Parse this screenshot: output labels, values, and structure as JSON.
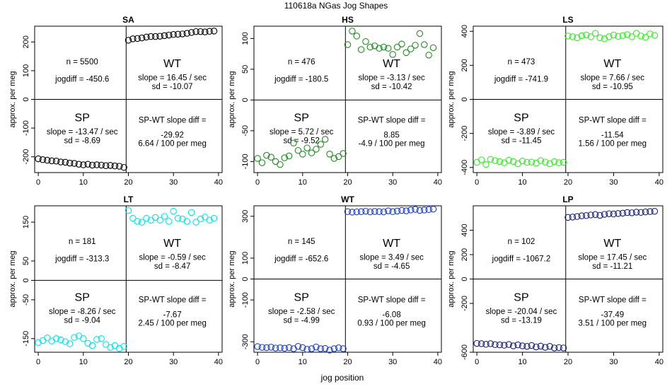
{
  "figure": {
    "title": "110618a    NGas Jog Shapes",
    "xlabel": "jog position",
    "ylabel": "approx. per meg"
  },
  "chart_data": [
    {
      "type": "scatter",
      "title": "SA",
      "color": "#000000",
      "xlim": [
        -0.8,
        40.8
      ],
      "ylim": [
        -255,
        255
      ],
      "xticks": [
        0,
        10,
        20,
        30,
        40
      ],
      "yticks": [
        -200,
        -100,
        0,
        100,
        200
      ],
      "sp": {
        "x": [
          0,
          1,
          2,
          3,
          4,
          5,
          6,
          7,
          8,
          9,
          10,
          11,
          12,
          13,
          14,
          15,
          16,
          17,
          18,
          19
        ],
        "y": [
          -207,
          -210,
          -212,
          -214,
          -215,
          -218,
          -219,
          -222,
          -223,
          -226,
          -228,
          -226,
          -229,
          -228,
          -229,
          -231,
          -230,
          -232,
          -233,
          -237
        ]
      },
      "wt": {
        "x": [
          20,
          21,
          22,
          23,
          24,
          25,
          26,
          27,
          28,
          29,
          30,
          31,
          32,
          33,
          34,
          35,
          36,
          37,
          38,
          39
        ],
        "y": [
          206,
          211,
          212,
          214,
          217,
          219,
          219,
          220,
          222,
          224,
          226,
          227,
          228,
          230,
          233,
          236,
          236,
          235,
          237,
          238
        ]
      },
      "n_text": "n = 5500",
      "jogdiff_text": "jogdiff = -450.6",
      "wt_label": "WT",
      "wt_slope": "slope = 16.45 / sec",
      "wt_sd": "sd = -10.07",
      "sp_label": "SP",
      "sp_slope": "slope = -13.47 / sec",
      "sp_sd": "sd = -8.69",
      "diff_label": "SP-WT slope diff =",
      "diff_value": "-29.92",
      "diff_per": "6.64 / 100 per meg"
    },
    {
      "type": "scatter",
      "title": "HS",
      "color": "#228B22",
      "xlim": [
        -0.8,
        40.8
      ],
      "ylim": [
        -118,
        120
      ],
      "xticks": [
        0,
        10,
        20,
        30,
        40
      ],
      "yticks": [
        -100,
        -50,
        0,
        50,
        100
      ],
      "sp": {
        "x": [
          0,
          1,
          2,
          3,
          4,
          5,
          6,
          7,
          8,
          9,
          10,
          11,
          12,
          13,
          14,
          15,
          16,
          17,
          18,
          19
        ],
        "y": [
          -95,
          -102,
          -90,
          -93,
          -100,
          -105,
          -94,
          -91,
          -70,
          -82,
          -88,
          -78,
          -86,
          -80,
          -72,
          -64,
          -88,
          -95,
          -92,
          -87
        ]
      },
      "wt": {
        "x": [
          20,
          21,
          22,
          23,
          24,
          25,
          26,
          27,
          28,
          29,
          30,
          31,
          32,
          33,
          34,
          35,
          36,
          37,
          38,
          39
        ],
        "y": [
          90,
          112,
          104,
          82,
          95,
          86,
          88,
          84,
          86,
          84,
          74,
          86,
          91,
          77,
          83,
          89,
          108,
          90,
          73,
          85
        ]
      },
      "n_text": "n = 476",
      "jogdiff_text": "jogdiff = -180.5",
      "wt_label": "WT",
      "wt_slope": "slope = -3.13 / sec",
      "wt_sd": "sd = -10.42",
      "sp_label": "SP",
      "sp_slope": "slope = 5.72 / sec",
      "sp_sd": "sd = -9.52",
      "diff_label": "SP-WT slope diff =",
      "diff_value": "8.85",
      "diff_per": "-4.9 / 100 per meg"
    },
    {
      "type": "scatter",
      "title": "LS",
      "color": "#33EE22",
      "xlim": [
        -0.8,
        40.8
      ],
      "ylim": [
        -430,
        430
      ],
      "xticks": [
        0,
        10,
        20,
        30,
        40
      ],
      "yticks": [
        -400,
        -200,
        0,
        200,
        400
      ],
      "sp": {
        "x": [
          0,
          1,
          2,
          3,
          4,
          5,
          6,
          7,
          8,
          9,
          10,
          11,
          12,
          13,
          14,
          15,
          16,
          17,
          18,
          19
        ],
        "y": [
          -370,
          -355,
          -382,
          -352,
          -360,
          -365,
          -372,
          -358,
          -365,
          -378,
          -362,
          -370,
          -368,
          -375,
          -360,
          -368,
          -378,
          -365,
          -372,
          -370
        ]
      },
      "wt": {
        "x": [
          20,
          21,
          22,
          23,
          24,
          25,
          26,
          27,
          28,
          29,
          30,
          31,
          32,
          33,
          34,
          35,
          36,
          37,
          38,
          39
        ],
        "y": [
          372,
          368,
          362,
          374,
          378,
          368,
          388,
          362,
          356,
          368,
          378,
          370,
          375,
          380,
          368,
          388,
          372,
          365,
          385,
          376
        ]
      },
      "n_text": "n = 473",
      "jogdiff_text": "jogdiff = -741.9",
      "wt_label": "WT",
      "wt_slope": "slope = 7.66 / sec",
      "wt_sd": "sd = -10.95",
      "sp_label": "SP",
      "sp_slope": "slope = -3.89 / sec",
      "sp_sd": "sd = -11.45",
      "diff_label": "SP-WT slope diff =",
      "diff_value": "-11.54",
      "diff_per": "1.56 / 100 per meg"
    },
    {
      "type": "scatter",
      "title": "LT",
      "color": "#00E5EE",
      "xlim": [
        -0.8,
        40.8
      ],
      "ylim": [
        -185,
        192
      ],
      "xticks": [
        0,
        10,
        20,
        30,
        40
      ],
      "yticks": [
        -150,
        -50,
        0,
        50,
        150
      ],
      "sp": {
        "x": [
          0,
          1,
          2,
          3,
          4,
          5,
          6,
          7,
          8,
          9,
          10,
          11,
          12,
          13,
          14,
          15,
          16,
          17,
          18,
          19
        ],
        "y": [
          -160,
          -155,
          -148,
          -156,
          -150,
          -153,
          -158,
          -163,
          -147,
          -143,
          -150,
          -162,
          -168,
          -152,
          -150,
          -165,
          -173,
          -168,
          -175,
          -170
        ]
      },
      "wt": {
        "x": [
          20,
          21,
          22,
          23,
          24,
          25,
          26,
          27,
          28,
          29,
          30,
          31,
          32,
          33,
          34,
          35,
          36,
          37,
          38,
          39
        ],
        "y": [
          180,
          160,
          152,
          150,
          160,
          155,
          162,
          155,
          165,
          152,
          178,
          160,
          158,
          152,
          175,
          150,
          158,
          163,
          155,
          160
        ]
      },
      "n_text": "n = 181",
      "jogdiff_text": "jogdiff = -313.3",
      "wt_label": "WT",
      "wt_slope": "slope = -0.59 / sec",
      "wt_sd": "sd = -8.47",
      "sp_label": "SP",
      "sp_slope": "slope = -8.26 / sec",
      "sp_sd": "sd = -9.04",
      "diff_label": "SP-WT slope diff =",
      "diff_value": "-7.67",
      "diff_per": "2.45 / 100 per meg"
    },
    {
      "type": "scatter",
      "title": "WT",
      "color": "#1E3FD0",
      "xlim": [
        -0.8,
        40.8
      ],
      "ylim": [
        -350,
        350
      ],
      "xticks": [
        0,
        10,
        20,
        30,
        40
      ],
      "yticks": [
        -300,
        -100,
        0,
        100,
        300
      ],
      "sp": {
        "x": [
          0,
          1,
          2,
          3,
          4,
          5,
          6,
          7,
          8,
          9,
          10,
          11,
          12,
          13,
          14,
          15,
          16,
          17,
          18,
          19
        ],
        "y": [
          -323,
          -327,
          -328,
          -326,
          -330,
          -329,
          -331,
          -328,
          -333,
          -322,
          -328,
          -336,
          -333,
          -325,
          -333,
          -332,
          -340,
          -333,
          -329,
          -333
        ]
      },
      "wt": {
        "x": [
          20,
          21,
          22,
          23,
          24,
          25,
          26,
          27,
          28,
          29,
          30,
          31,
          32,
          33,
          34,
          35,
          36,
          37,
          38,
          39
        ],
        "y": [
          322,
          320,
          321,
          322,
          324,
          321,
          323,
          322,
          321,
          326,
          322,
          325,
          328,
          326,
          330,
          333,
          328,
          330,
          332,
          334
        ]
      },
      "n_text": "n = 145",
      "jogdiff_text": "jogdiff = -652.6",
      "wt_label": "WT",
      "wt_slope": "slope = 3.49 / sec",
      "wt_sd": "sd = -4.65",
      "sp_label": "SP",
      "sp_slope": "slope = -2.58 / sec",
      "sp_sd": "sd = -4.99",
      "diff_label": "SP-WT slope diff =",
      "diff_value": "-6.08",
      "diff_per": "0.93 / 100 per meg"
    },
    {
      "type": "scatter",
      "title": "LP",
      "color": "#1A237E",
      "xlim": [
        -0.8,
        40.8
      ],
      "ylim": [
        -600,
        600
      ],
      "xticks": [
        0,
        10,
        20,
        30,
        40
      ],
      "yticks": [
        -600,
        -200,
        0,
        200,
        400
      ],
      "sp": {
        "x": [
          0,
          1,
          2,
          3,
          4,
          5,
          6,
          7,
          8,
          9,
          10,
          11,
          12,
          13,
          14,
          15,
          16,
          17,
          18,
          19
        ],
        "y": [
          -528,
          -530,
          -535,
          -530,
          -538,
          -540,
          -543,
          -537,
          -548,
          -540,
          -548,
          -552,
          -545,
          -557,
          -550,
          -560,
          -552,
          -565,
          -562,
          -565
        ]
      },
      "wt": {
        "x": [
          20,
          21,
          22,
          23,
          24,
          25,
          26,
          27,
          28,
          29,
          30,
          31,
          32,
          33,
          34,
          35,
          36,
          37,
          38,
          39
        ],
        "y": [
          505,
          508,
          512,
          518,
          520,
          525,
          528,
          522,
          530,
          535,
          533,
          537,
          540,
          545,
          543,
          548,
          546,
          550,
          553,
          555
        ]
      },
      "n_text": "n = 102",
      "jogdiff_text": "jogdiff = -1067.2",
      "wt_label": "WT",
      "wt_slope": "slope = 17.45 / sec",
      "wt_sd": "sd = -11.21",
      "sp_label": "SP",
      "sp_slope": "slope = -20.04 / sec",
      "sp_sd": "sd = -13.19",
      "diff_label": "SP-WT slope diff =",
      "diff_value": "-37.49",
      "diff_per": "3.51 / 100 per meg"
    }
  ]
}
